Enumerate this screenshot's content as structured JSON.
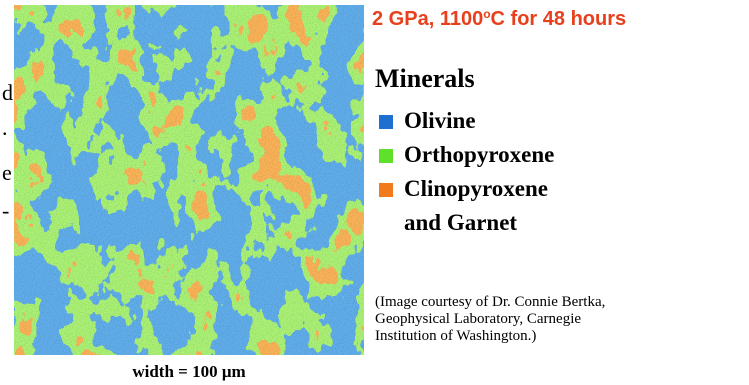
{
  "figure": {
    "title_parts": [
      "2 GPa, 1100",
      "o",
      "C for 48 hours"
    ],
    "cropped_text": [
      "d",
      ".",
      "e",
      "-"
    ],
    "legend": {
      "title": "Minerals",
      "items": [
        {
          "label": [
            "Olivine"
          ],
          "color": "#1f6fd0"
        },
        {
          "label": [
            "Orthopyroxene"
          ],
          "color": "#5fe02a"
        },
        {
          "label": [
            "Clinopyroxene",
            "and Garnet"
          ],
          "color": "#f07a1c"
        }
      ]
    },
    "credit": [
      "(Image courtesy of Dr. Connie Bertka,",
      "Geophysical Laboratory, Carnegie",
      "Institution of Washington.)"
    ],
    "caption": "width = 100 μm"
  }
}
